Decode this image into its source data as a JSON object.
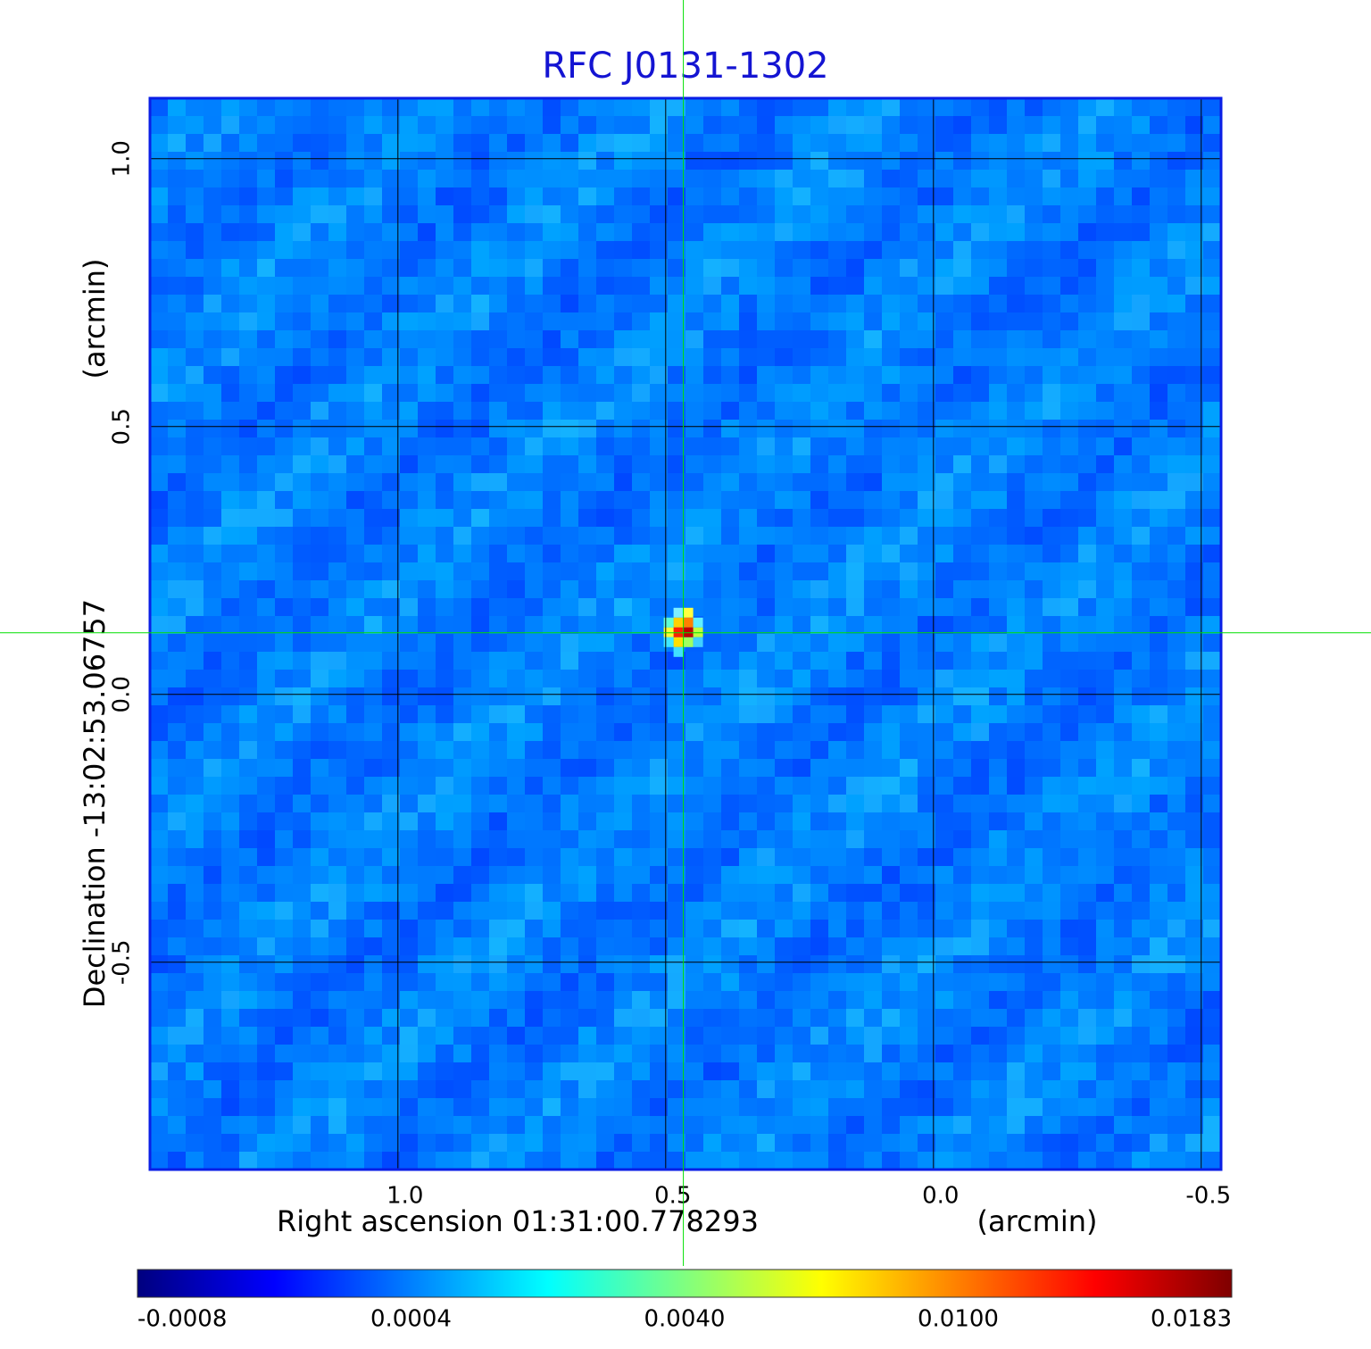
{
  "chart_data": {
    "type": "image",
    "title": "RFC J0131-1302",
    "xlabel": "Right ascension  01:31:00.778293",
    "xunit": "(arcmin)",
    "ylabel": "Declination  -13:02:53.06757",
    "yunit": "(arcmin)",
    "xlim": [
      1.463,
      -0.537
    ],
    "ylim": [
      -0.887,
      1.113
    ],
    "xticks": [
      {
        "value": 1,
        "label": "1.0"
      },
      0.5,
      {
        "value": 0,
        "label": "0.0"
      },
      -0.5
    ],
    "yticks": [
      {
        "value": 1,
        "label": "1.0"
      },
      0.5,
      {
        "value": 0,
        "label": "0.0"
      },
      -0.5
    ],
    "grid": true,
    "crosshair": {
      "x": 0.467,
      "y": 0.115,
      "color": "#00e000"
    },
    "colormap": "jet",
    "cticks": [
      -0.0008,
      0.0004,
      {
        "value": 0.004,
        "label": "0.0040"
      },
      {
        "value": 0.01,
        "label": "0.0100"
      },
      0.0183
    ]
  }
}
